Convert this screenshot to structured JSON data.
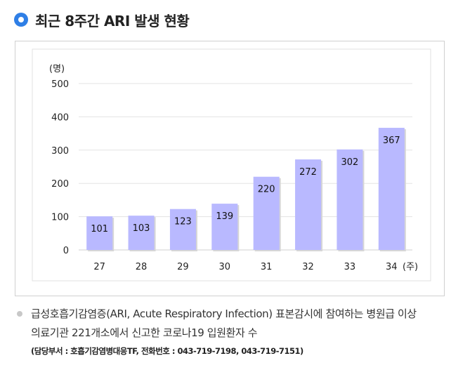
{
  "header": {
    "title": "최근 8주간 ARI 발생 현황"
  },
  "chart_data": {
    "type": "bar",
    "title": "",
    "ylabel": "(명)",
    "xlabel": "(주)",
    "categories": [
      "27",
      "28",
      "29",
      "30",
      "31",
      "32",
      "33",
      "34"
    ],
    "values": [
      101,
      103,
      123,
      139,
      220,
      272,
      302,
      367
    ],
    "yticks": [
      "0",
      "100",
      "200",
      "300",
      "400",
      "500"
    ],
    "ylim": [
      0,
      500
    ],
    "grid": true,
    "bar_color": "#b9b9ff"
  },
  "note": {
    "line1": "급성호흡기감염증(ARI, Acute Respiratory Infection) 표본감시에 참여하는 병원급 이상",
    "line2": "의료기관 221개소에서 신고한 코로나19 입원환자 수",
    "contact": "(담당부서 : 호흡기감염병대응TF, 전화번호 : 043-719-7198, 043-719-7151)"
  }
}
